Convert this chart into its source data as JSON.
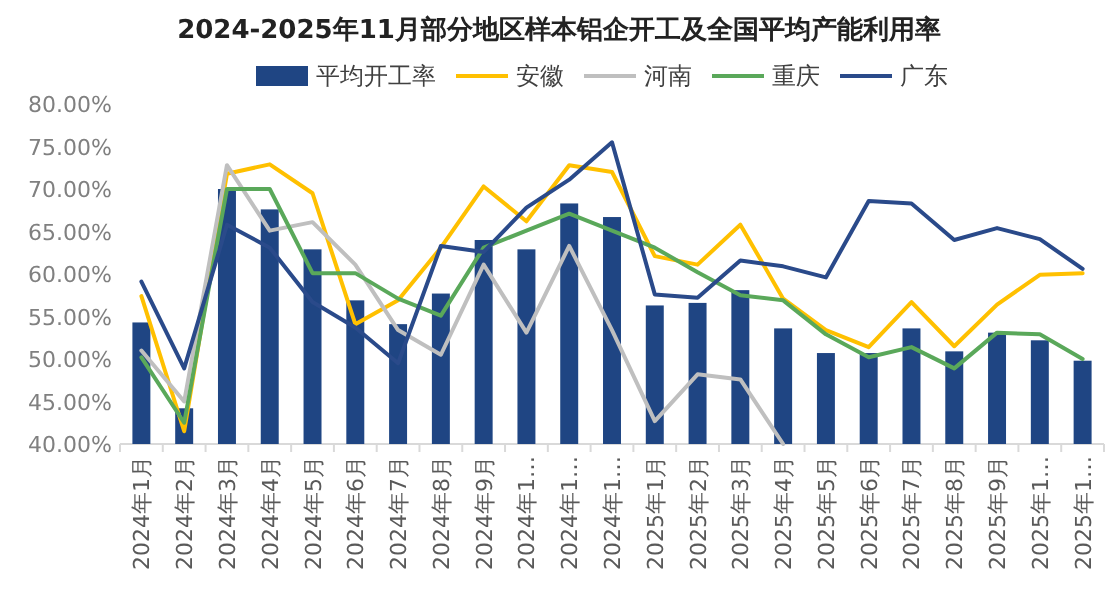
{
  "chart_data": {
    "type": "bar",
    "title": "2024-2025年11月部分地区样本铝企开工及全国平均产能利用率",
    "categories": [
      "2024年1月",
      "2024年2月",
      "2024年3月",
      "2024年4月",
      "2024年5月",
      "2024年6月",
      "2024年7月",
      "2024年8月",
      "2024年9月",
      "2024年1…",
      "2024年1…",
      "2024年1…",
      "2025年1月",
      "2025年2月",
      "2025年3月",
      "2025年4月",
      "2025年5月",
      "2025年6月",
      "2025年7月",
      "2025年8月",
      "2025年9月",
      "2025年1…",
      "2025年1…"
    ],
    "series": [
      {
        "name": "平均开工率",
        "color": "#1f4583",
        "values": [
          54.3,
          44.2,
          70.0,
          67.6,
          62.9,
          56.9,
          54.1,
          57.7,
          64.0,
          62.9,
          68.3,
          66.7,
          56.3,
          56.6,
          58.1,
          53.6,
          50.7,
          50.7,
          53.6,
          50.9,
          53.1,
          52.2,
          49.8
        ]
      },
      {
        "name": "安徽",
        "type": "line",
        "color": "#ffc000",
        "values": [
          57.4,
          41.5,
          71.8,
          72.9,
          69.5,
          54.1,
          56.9,
          63.1,
          70.3,
          66.2,
          72.8,
          72.0,
          62.1,
          61.1,
          65.8,
          57.1,
          53.4,
          51.4,
          56.7,
          51.5,
          56.4,
          59.9,
          60.1
        ]
      },
      {
        "name": "河南",
        "type": "line",
        "color": "#bfbfbf",
        "values": [
          51.0,
          45.0,
          72.8,
          65.1,
          66.1,
          61.1,
          53.4,
          50.5,
          61.1,
          53.1,
          63.3,
          53.4,
          42.7,
          48.2,
          47.6,
          40.0,
          null,
          null,
          null,
          null,
          null,
          null,
          null
        ]
      },
      {
        "name": "重庆",
        "type": "line",
        "color": "#5aa85a",
        "values": [
          50.2,
          42.5,
          70.0,
          70.0,
          60.1,
          60.1,
          57.1,
          55.1,
          63.1,
          65.1,
          67.1,
          65.1,
          63.1,
          60.2,
          57.5,
          56.9,
          52.9,
          50.2,
          51.4,
          48.9,
          53.1,
          52.9,
          50.0
        ]
      },
      {
        "name": "广东",
        "type": "line",
        "color": "#2a4a8a",
        "values": [
          59.1,
          48.9,
          65.8,
          63.1,
          56.7,
          53.7,
          49.5,
          63.3,
          62.6,
          67.8,
          71.1,
          75.5,
          57.6,
          57.2,
          61.6,
          60.9,
          59.6,
          68.6,
          68.3,
          64.0,
          65.4,
          64.1,
          60.6
        ]
      }
    ],
    "ylim": [
      40,
      80
    ],
    "yticks": [
      {
        "value": 40,
        "label": "40.00%"
      },
      {
        "value": 45,
        "label": "45.00%"
      },
      {
        "value": 50,
        "label": "50.00%"
      },
      {
        "value": 55,
        "label": "55.00%"
      },
      {
        "value": 60,
        "label": "60.00%"
      },
      {
        "value": 65,
        "label": "65.00%"
      },
      {
        "value": 70,
        "label": "70.00%"
      },
      {
        "value": 75,
        "label": "75.00%"
      },
      {
        "value": 80,
        "label": "80.00%"
      }
    ],
    "legend": "top"
  }
}
